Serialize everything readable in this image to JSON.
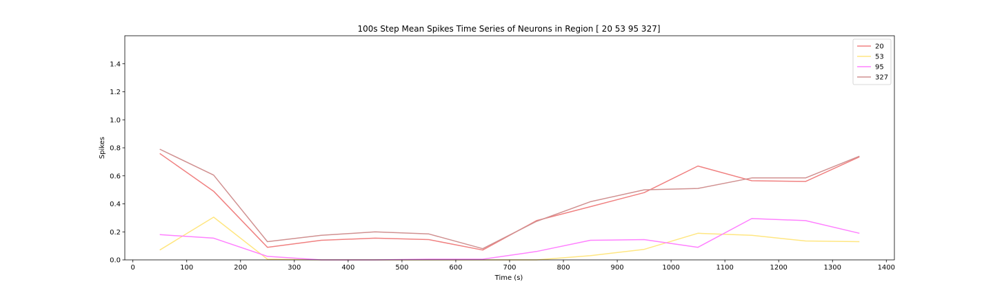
{
  "chart_data": {
    "type": "line",
    "title": "100s Step Mean Spikes Time Series of Neurons in Region [ 20  53  95 327]",
    "xlabel": "Time (s)",
    "ylabel": "Spikes",
    "xlim": [
      -15,
      1415
    ],
    "ylim": [
      0,
      1.6
    ],
    "xticks": [
      0,
      100,
      200,
      300,
      400,
      500,
      600,
      700,
      800,
      900,
      1000,
      1100,
      1200,
      1300,
      1400
    ],
    "yticks": [
      0.0,
      0.2,
      0.4,
      0.6,
      0.8,
      1.0,
      1.2,
      1.4
    ],
    "ytick_labels": [
      "0.0",
      "0.2",
      "0.4",
      "0.6",
      "0.8",
      "1.0",
      "1.2",
      "1.4"
    ],
    "grid": false,
    "legend_position": "top-right",
    "x": [
      50,
      150,
      250,
      350,
      450,
      550,
      650,
      750,
      850,
      950,
      1050,
      1150,
      1250,
      1350
    ],
    "series": [
      {
        "name": "20",
        "color": "#f08080",
        "values": [
          0.76,
          0.49,
          0.09,
          0.14,
          0.155,
          0.145,
          0.07,
          0.28,
          0.38,
          0.48,
          0.67,
          0.565,
          0.56,
          0.735
        ]
      },
      {
        "name": "53",
        "color": "#ffe680",
        "values": [
          0.07,
          0.305,
          0.005,
          0.0,
          0.0,
          0.0,
          0.0,
          0.0,
          0.03,
          0.075,
          0.19,
          0.175,
          0.135,
          0.13
        ]
      },
      {
        "name": "95",
        "color": "#ff80ff",
        "values": [
          0.18,
          0.155,
          0.025,
          0.0,
          0.0,
          0.005,
          0.005,
          0.06,
          0.14,
          0.145,
          0.09,
          0.295,
          0.28,
          0.19
        ]
      },
      {
        "name": "327",
        "color": "#d09090",
        "values": [
          0.79,
          0.605,
          0.13,
          0.175,
          0.2,
          0.185,
          0.08,
          0.275,
          0.415,
          0.5,
          0.51,
          0.585,
          0.585,
          0.74
        ]
      }
    ]
  }
}
